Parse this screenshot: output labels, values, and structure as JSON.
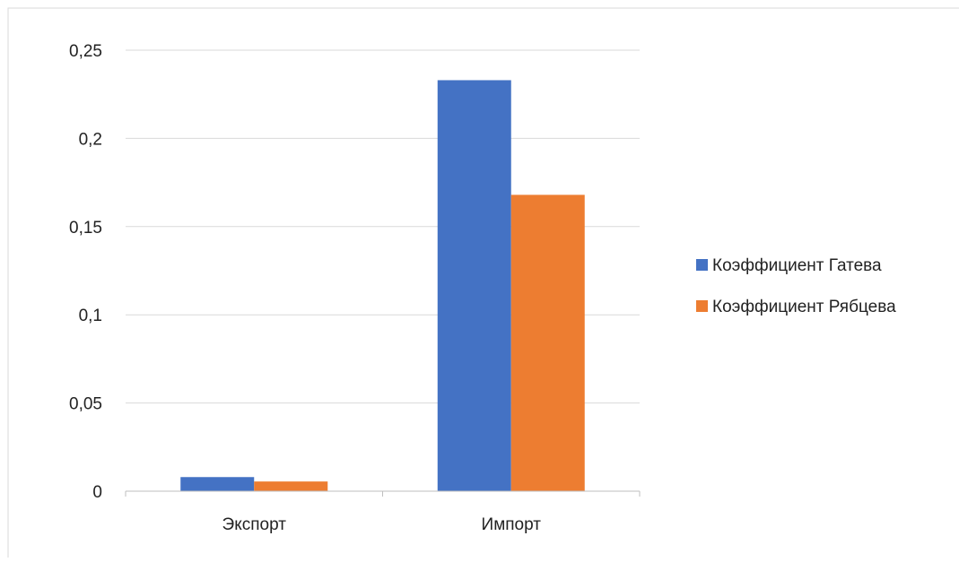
{
  "chart_data": {
    "type": "bar",
    "categories": [
      "Экспорт",
      "Импорт"
    ],
    "series": [
      {
        "name": "Коэффициент Гатева",
        "color": "#4472C4",
        "values": [
          0.008,
          0.233
        ]
      },
      {
        "name": "Коэффициент Рябцева",
        "color": "#ED7D31",
        "values": [
          0.0055,
          0.168
        ]
      }
    ],
    "ylim": [
      0,
      0.25
    ],
    "yticks": [
      0,
      0.05,
      0.1,
      0.15,
      0.2,
      0.25
    ],
    "ytick_labels": [
      "0",
      "0,05",
      "0,1",
      "0,15",
      "0,2",
      "0,25"
    ],
    "grid": true,
    "legend_position": "right",
    "title": "",
    "xlabel": "",
    "ylabel": ""
  }
}
